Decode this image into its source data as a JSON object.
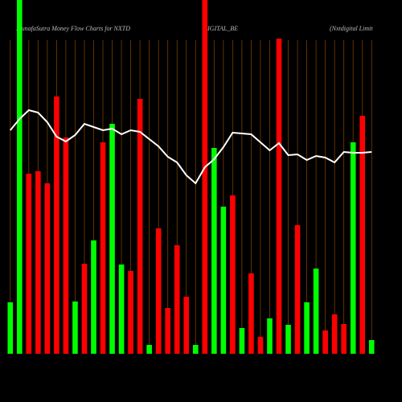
{
  "chart_data": {
    "type": "bar",
    "title": [
      "MunafaSutra  Money Flow  Charts for NXTD",
      "IGITAL_BE",
      "(Nxtdigital Limit"
    ],
    "values": [
      64,
      440,
      224,
      227,
      212,
      320,
      269,
      65,
      112,
      141,
      263,
      286,
      111,
      103,
      317,
      11,
      156,
      57,
      135,
      71,
      11,
      440,
      256,
      183,
      197,
      32,
      100,
      21,
      44,
      392,
      36,
      160,
      64,
      106,
      29,
      49,
      37,
      263,
      296,
      17
    ],
    "colors": [
      "#00ff00",
      "#00ff00",
      "#ff0000",
      "#ff0000",
      "#ff0000",
      "#ff0000",
      "#ff0000",
      "#00ff00",
      "#ff0000",
      "#00ff00",
      "#ff0000",
      "#00ff00",
      "#00ff00",
      "#ff0000",
      "#ff0000",
      "#00ff00",
      "#ff0000",
      "#ff0000",
      "#ff0000",
      "#ff0000",
      "#00ff00",
      "#ff0000",
      "#00ff00",
      "#00ff00",
      "#ff0000",
      "#00ff00",
      "#ff0000",
      "#ff0000",
      "#00ff00",
      "#ff0000",
      "#00ff00",
      "#ff0000",
      "#00ff00",
      "#00ff00",
      "#ff0000",
      "#ff0000",
      "#ff0000",
      "#00ff00",
      "#ff0000",
      "#00ff00"
    ],
    "line": {
      "color": "#ffffff",
      "values": [
        278,
        292,
        303,
        300,
        288,
        270,
        264,
        272,
        286,
        282,
        278,
        280,
        273,
        278,
        276,
        267,
        258,
        245,
        238,
        222,
        212,
        232,
        242,
        257,
        275,
        274,
        273,
        263,
        253,
        262,
        247,
        248,
        241,
        246,
        244,
        238,
        251,
        250,
        250,
        251
      ]
    },
    "ylim": [
      0,
      440
    ]
  }
}
